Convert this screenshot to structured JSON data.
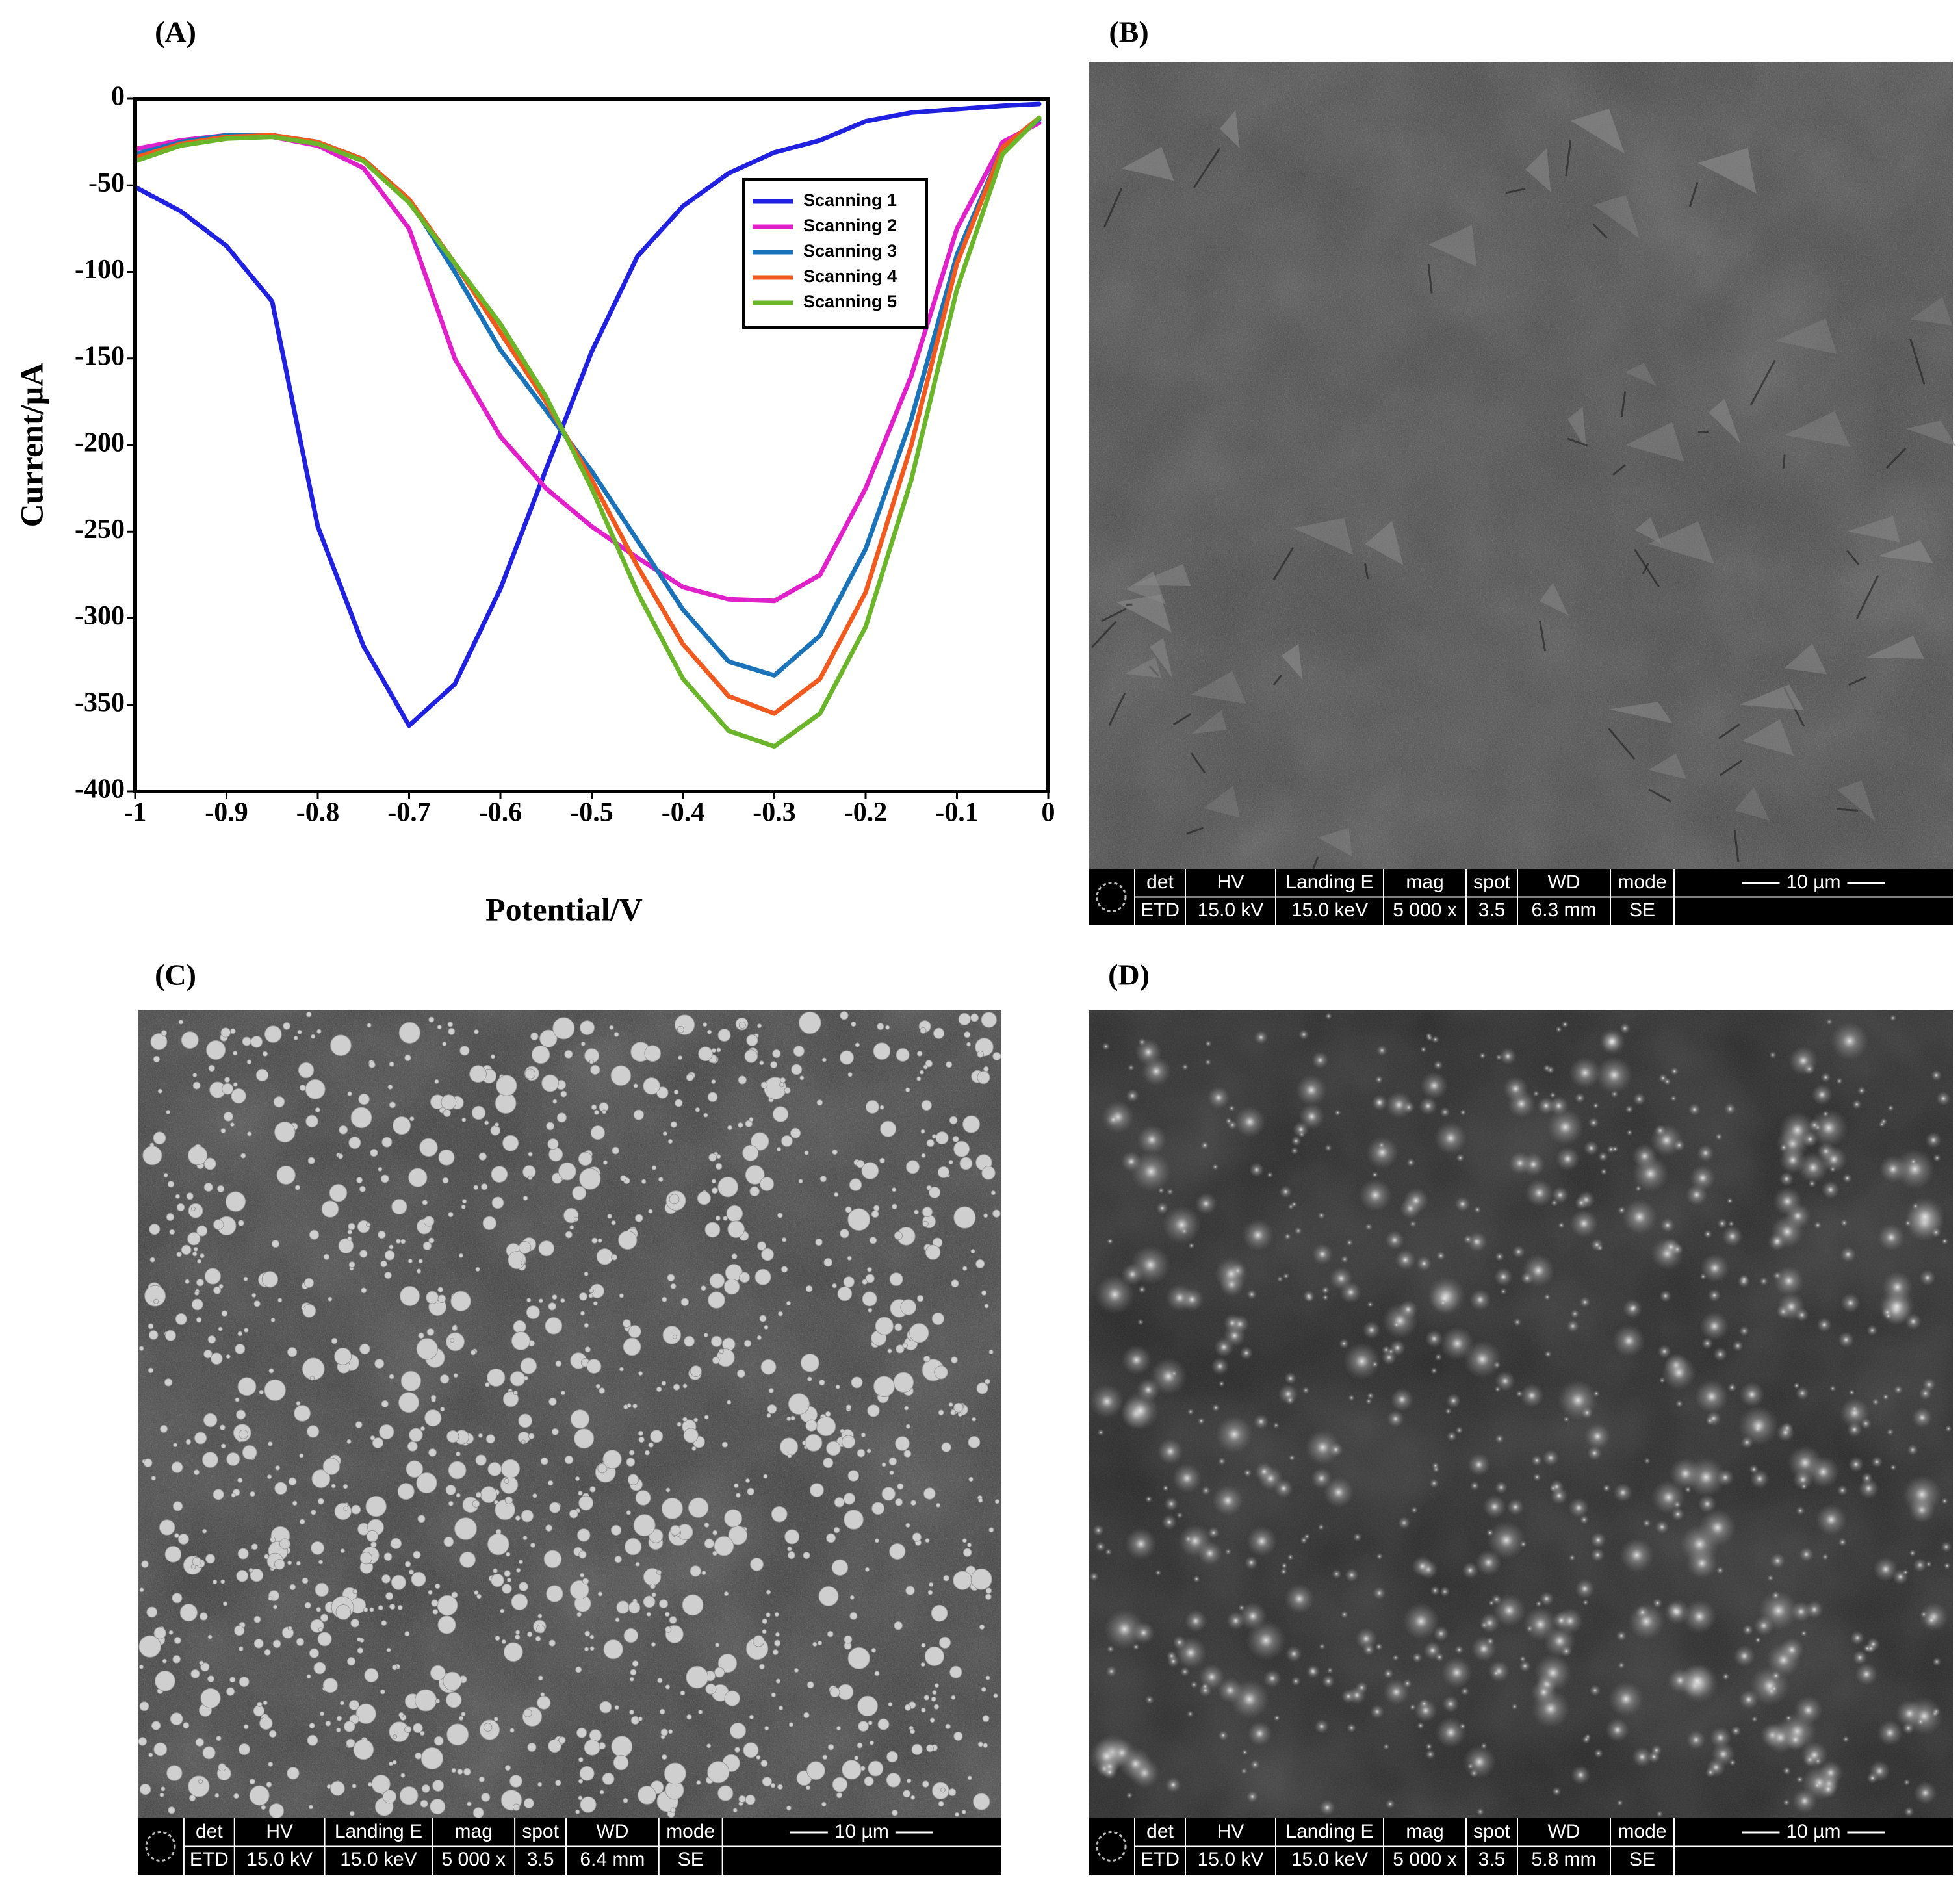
{
  "chart_data": {
    "type": "line",
    "panel_label": "(A)",
    "x_label": "Potential/V",
    "y_label": "Current/µA",
    "x": [
      -1,
      -0.95,
      -0.9,
      -0.85,
      -0.8,
      -0.75,
      -0.7,
      -0.65,
      -0.6,
      -0.55,
      -0.5,
      -0.45,
      -0.4,
      -0.35,
      -0.3,
      -0.25,
      -0.2,
      -0.15,
      -0.1,
      -0.05,
      -0.01
    ],
    "series": [
      {
        "name": "Scanning 1",
        "color": "#2020e0",
        "values": [
          -51,
          -65,
          -85,
          -117,
          -247,
          -316,
          -362,
          -338,
          -283,
          -214,
          -146,
          -91,
          -62,
          -43,
          -31,
          -24,
          -13,
          -8,
          -6,
          -4,
          -3
        ]
      },
      {
        "name": "Scanning 2",
        "color": "#e020c8",
        "values": [
          -29,
          -24,
          -21,
          -22,
          -27,
          -40,
          -75,
          -150,
          -195,
          -225,
          -247,
          -265,
          -282,
          -289,
          -290,
          -275,
          -225,
          -160,
          -75,
          -25,
          -14
        ]
      },
      {
        "name": "Scanning 3",
        "color": "#1a73b8",
        "values": [
          -32,
          -25,
          -21,
          -21,
          -25,
          -35,
          -58,
          -100,
          -145,
          -180,
          -215,
          -255,
          -295,
          -325,
          -333,
          -310,
          -260,
          -185,
          -90,
          -28,
          -12
        ]
      },
      {
        "name": "Scanning 4",
        "color": "#f05a1e",
        "values": [
          -34,
          -26,
          -22,
          -21,
          -25,
          -35,
          -58,
          -95,
          -135,
          -175,
          -220,
          -270,
          -315,
          -345,
          -355,
          -335,
          -285,
          -200,
          -95,
          -28,
          -11
        ]
      },
      {
        "name": "Scanning 5",
        "color": "#6bb52a",
        "values": [
          -36,
          -27,
          -23,
          -22,
          -26,
          -36,
          -60,
          -95,
          -130,
          -172,
          -225,
          -285,
          -335,
          -365,
          -374,
          -355,
          -305,
          -220,
          -110,
          -32,
          -11
        ]
      }
    ],
    "xlim": [
      -1,
      0
    ],
    "xticks": [
      -1,
      -0.9,
      -0.8,
      -0.7,
      -0.6,
      -0.5,
      -0.4,
      -0.3,
      -0.2,
      -0.1,
      0
    ],
    "ylim": [
      -400,
      0
    ],
    "yticks": [
      0,
      -50,
      -100,
      -150,
      -200,
      -250,
      -300,
      -350,
      -400
    ],
    "grid": false,
    "legend": "upper right"
  },
  "sem_panels": [
    {
      "label": "(B)",
      "headers": [
        "det",
        "HV",
        "Landing E",
        "mag",
        "spot",
        "WD",
        "mode"
      ],
      "values": [
        "ETD",
        "15.0 kV",
        "15.0 keV",
        "5 000 x",
        "3.5",
        "6.3 mm",
        "SE"
      ],
      "scale": "10 µm"
    },
    {
      "label": "(C)",
      "headers": [
        "det",
        "HV",
        "Landing E",
        "mag",
        "spot",
        "WD",
        "mode"
      ],
      "values": [
        "ETD",
        "15.0 kV",
        "15.0 keV",
        "5 000 x",
        "3.5",
        "6.4 mm",
        "SE"
      ],
      "scale": "10 µm"
    },
    {
      "label": "(D)",
      "headers": [
        "det",
        "HV",
        "Landing E",
        "mag",
        "spot",
        "WD",
        "mode"
      ],
      "values": [
        "ETD",
        "15.0 kV",
        "15.0 keV",
        "5 000 x",
        "3.5",
        "5.8 mm",
        "SE"
      ],
      "scale": "10 µm"
    }
  ]
}
